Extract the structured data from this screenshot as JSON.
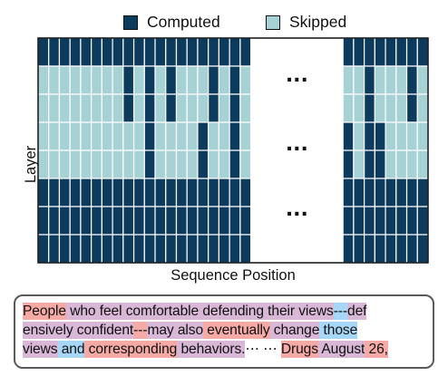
{
  "colors": {
    "computed": "#0d3b5e",
    "skipped": "#a6d2d6",
    "grid_line": "#ffffff",
    "frame": "#111111",
    "token_red": "#f5aaa5",
    "token_purple": "#d8b7d7",
    "token_blue": "#a6d7f7",
    "token_none": "#ffffff"
  },
  "legend": [
    {
      "label": "Computed",
      "color": "#0d3b5e"
    },
    {
      "label": "Skipped",
      "color": "#a6d2d6"
    }
  ],
  "chart_data": {
    "type": "heatmap",
    "title": "",
    "xlabel": "Sequence Position",
    "ylabel": "Layer",
    "row_count": 8,
    "gap_label": "...",
    "column_groups": [
      {
        "name": "left",
        "columns": [
          [
            1,
            0,
            0,
            0,
            0,
            1,
            1,
            1
          ],
          [
            1,
            0,
            0,
            0,
            0,
            1,
            1,
            1
          ],
          [
            1,
            0,
            0,
            0,
            0,
            1,
            1,
            1
          ],
          [
            1,
            0,
            0,
            0,
            0,
            1,
            1,
            1
          ],
          [
            1,
            0,
            0,
            0,
            0,
            1,
            1,
            1
          ],
          [
            1,
            0,
            0,
            0,
            0,
            1,
            1,
            1
          ],
          [
            1,
            0,
            0,
            0,
            0,
            1,
            1,
            1
          ],
          [
            1,
            0,
            0,
            0,
            0,
            1,
            1,
            1
          ],
          [
            1,
            1,
            1,
            0,
            0,
            1,
            1,
            1
          ],
          [
            1,
            0,
            0,
            0,
            0,
            1,
            1,
            1
          ],
          [
            1,
            1,
            1,
            1,
            1,
            1,
            1,
            1
          ],
          [
            1,
            0,
            0,
            0,
            0,
            1,
            1,
            1
          ],
          [
            1,
            1,
            1,
            0,
            0,
            1,
            1,
            1
          ],
          [
            1,
            0,
            0,
            0,
            0,
            1,
            1,
            1
          ],
          [
            1,
            0,
            0,
            0,
            0,
            1,
            1,
            1
          ],
          [
            1,
            0,
            0,
            1,
            1,
            1,
            1,
            1
          ],
          [
            1,
            1,
            1,
            0,
            0,
            1,
            1,
            1
          ],
          [
            1,
            0,
            0,
            0,
            0,
            1,
            1,
            1
          ],
          [
            1,
            1,
            1,
            1,
            1,
            1,
            1,
            1
          ],
          [
            1,
            0,
            0,
            0,
            0,
            1,
            1,
            1
          ]
        ]
      },
      {
        "name": "right",
        "columns": [
          [
            1,
            0,
            0,
            1,
            1,
            1,
            1,
            1
          ],
          [
            1,
            0,
            0,
            0,
            0,
            1,
            1,
            1
          ],
          [
            1,
            1,
            1,
            1,
            1,
            1,
            1,
            1
          ],
          [
            1,
            0,
            0,
            1,
            1,
            1,
            1,
            1
          ],
          [
            1,
            0,
            0,
            0,
            0,
            1,
            1,
            1
          ],
          [
            1,
            0,
            0,
            0,
            0,
            1,
            1,
            1
          ],
          [
            1,
            1,
            1,
            0,
            0,
            1,
            1,
            1
          ],
          [
            1,
            0,
            0,
            0,
            0,
            1,
            1,
            1
          ]
        ]
      }
    ],
    "value_legend": {
      "1": "Computed",
      "0": "Skipped"
    }
  },
  "token_text": {
    "lines": [
      [
        {
          "t": "People",
          "c": "red"
        },
        {
          "t": " who feel comfortable defending their views",
          "c": "purple"
        },
        {
          "t": "---",
          "c": "blue"
        },
        {
          "t": "def",
          "c": "purple"
        }
      ],
      [
        {
          "t": "ensively confident",
          "c": "purple"
        },
        {
          "t": "---",
          "c": "red"
        },
        {
          "t": "may also",
          "c": "purple"
        },
        {
          "t": " eventually",
          "c": "red"
        },
        {
          "t": " change",
          "c": "purple"
        },
        {
          "t": " those",
          "c": "blue"
        }
      ],
      [
        {
          "t": "views",
          "c": "purple"
        },
        {
          "t": " and",
          "c": "blue"
        },
        {
          "t": " corresponding",
          "c": "red"
        },
        {
          "t": " behaviors.",
          "c": "purple"
        },
        {
          "t": "⋯ ⋯ ",
          "c": "none"
        },
        {
          "t": "Drugs",
          "c": "red"
        },
        {
          "t": " August",
          "c": "purple"
        },
        {
          "t": " 26,",
          "c": "red"
        }
      ]
    ]
  }
}
